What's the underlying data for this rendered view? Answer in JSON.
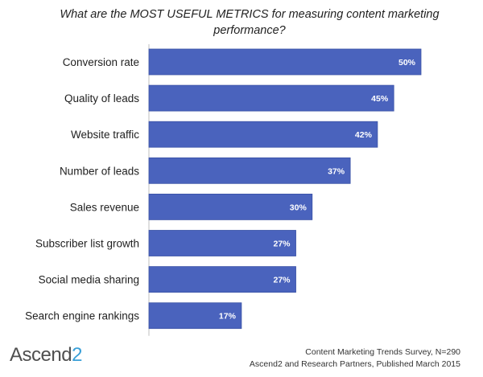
{
  "colors": {
    "bar": "#4a63bd",
    "bar_edge": "#3a52a6",
    "value_label": "#ffffff"
  },
  "logo": {
    "main": "Ascend",
    "accent": "2"
  },
  "footer": {
    "line1": "Content Marketing Trends Survey, N=290",
    "line2": "Ascend2 and Research Partners, Published March 2015"
  },
  "chart_data": {
    "type": "bar",
    "orientation": "horizontal",
    "title": "What are the MOST USEFUL METRICS for measuring content marketing performance?",
    "categories": [
      "Conversion rate",
      "Quality of leads",
      "Website traffic",
      "Number of leads",
      "Sales revenue",
      "Subscriber list growth",
      "Social media sharing",
      "Search engine rankings"
    ],
    "values": [
      50,
      45,
      42,
      37,
      30,
      27,
      27,
      17
    ],
    "value_labels": [
      "50%",
      "45%",
      "42%",
      "37%",
      "30%",
      "27%",
      "27%",
      "17%"
    ],
    "xlim": [
      0,
      50
    ],
    "grid": false,
    "legend": "none"
  }
}
